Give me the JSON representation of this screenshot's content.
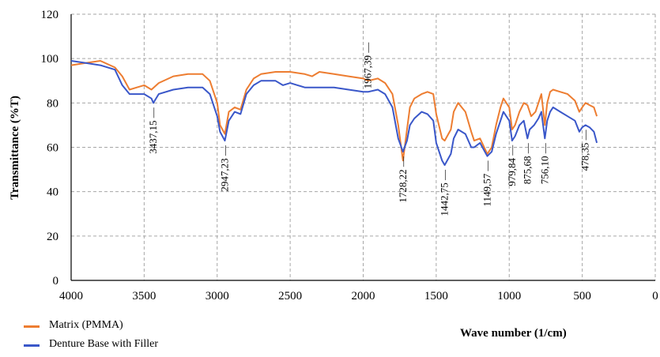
{
  "chart_data": {
    "type": "line",
    "title": "",
    "xlabel": "Wave number (1/cm)",
    "ylabel": "Transmittance (%T)",
    "xlim": [
      4000,
      0
    ],
    "ylim": [
      0,
      120
    ],
    "x_ticks": [
      "4000",
      "3500",
      "3000",
      "2500",
      "2000",
      "1500",
      "1000",
      "500",
      "0"
    ],
    "y_ticks": [
      "0",
      "20",
      "40",
      "60",
      "80",
      "100",
      "120"
    ],
    "grid": true,
    "legend_position": "bottom-left",
    "series": [
      {
        "name": "Matrix (PMMA)",
        "color": "#ED7D31",
        "points": [
          [
            4000,
            97
          ],
          [
            3900,
            98
          ],
          [
            3800,
            99
          ],
          [
            3700,
            96
          ],
          [
            3650,
            92
          ],
          [
            3600,
            86
          ],
          [
            3550,
            87
          ],
          [
            3500,
            88
          ],
          [
            3450,
            86
          ],
          [
            3400,
            89
          ],
          [
            3300,
            92
          ],
          [
            3200,
            93
          ],
          [
            3100,
            93
          ],
          [
            3050,
            90
          ],
          [
            3000,
            80
          ],
          [
            2980,
            70
          ],
          [
            2947,
            66
          ],
          [
            2920,
            76
          ],
          [
            2880,
            78
          ],
          [
            2840,
            77
          ],
          [
            2800,
            86
          ],
          [
            2750,
            91
          ],
          [
            2700,
            93
          ],
          [
            2600,
            94
          ],
          [
            2500,
            94
          ],
          [
            2400,
            93
          ],
          [
            2350,
            92
          ],
          [
            2300,
            94
          ],
          [
            2200,
            93
          ],
          [
            2100,
            92
          ],
          [
            2000,
            91
          ],
          [
            1967,
            90
          ],
          [
            1900,
            91
          ],
          [
            1850,
            89
          ],
          [
            1800,
            84
          ],
          [
            1760,
            70
          ],
          [
            1728,
            54
          ],
          [
            1700,
            68
          ],
          [
            1680,
            78
          ],
          [
            1650,
            82
          ],
          [
            1600,
            84
          ],
          [
            1560,
            85
          ],
          [
            1520,
            84
          ],
          [
            1500,
            75
          ],
          [
            1460,
            64
          ],
          [
            1442,
            63
          ],
          [
            1400,
            68
          ],
          [
            1380,
            76
          ],
          [
            1350,
            80
          ],
          [
            1300,
            76
          ],
          [
            1260,
            67
          ],
          [
            1240,
            63
          ],
          [
            1200,
            64
          ],
          [
            1150,
            57
          ],
          [
            1120,
            60
          ],
          [
            1090,
            70
          ],
          [
            1060,
            78
          ],
          [
            1040,
            82
          ],
          [
            1000,
            78
          ],
          [
            980,
            68
          ],
          [
            960,
            70
          ],
          [
            930,
            76
          ],
          [
            900,
            80
          ],
          [
            875,
            79
          ],
          [
            850,
            74
          ],
          [
            820,
            76
          ],
          [
            800,
            80
          ],
          [
            780,
            84
          ],
          [
            756,
            70
          ],
          [
            740,
            80
          ],
          [
            720,
            85
          ],
          [
            700,
            86
          ],
          [
            650,
            85
          ],
          [
            600,
            84
          ],
          [
            550,
            81
          ],
          [
            520,
            76
          ],
          [
            500,
            78
          ],
          [
            478,
            80
          ],
          [
            450,
            79
          ],
          [
            420,
            78
          ],
          [
            400,
            74
          ]
        ]
      },
      {
        "name": "Denture Base with Filler",
        "color": "#3A57C9",
        "points": [
          [
            4000,
            99
          ],
          [
            3900,
            98
          ],
          [
            3800,
            97
          ],
          [
            3700,
            95
          ],
          [
            3650,
            88
          ],
          [
            3600,
            84
          ],
          [
            3550,
            84
          ],
          [
            3500,
            84
          ],
          [
            3450,
            82
          ],
          [
            3437,
            80
          ],
          [
            3400,
            84
          ],
          [
            3300,
            86
          ],
          [
            3200,
            87
          ],
          [
            3100,
            87
          ],
          [
            3050,
            84
          ],
          [
            3000,
            74
          ],
          [
            2980,
            67
          ],
          [
            2947,
            63
          ],
          [
            2920,
            72
          ],
          [
            2880,
            76
          ],
          [
            2840,
            75
          ],
          [
            2800,
            84
          ],
          [
            2750,
            88
          ],
          [
            2700,
            90
          ],
          [
            2600,
            90
          ],
          [
            2550,
            88
          ],
          [
            2500,
            89
          ],
          [
            2450,
            88
          ],
          [
            2400,
            87
          ],
          [
            2300,
            87
          ],
          [
            2200,
            87
          ],
          [
            2100,
            86
          ],
          [
            2000,
            85
          ],
          [
            1967,
            85
          ],
          [
            1900,
            86
          ],
          [
            1850,
            84
          ],
          [
            1800,
            78
          ],
          [
            1760,
            64
          ],
          [
            1728,
            58
          ],
          [
            1700,
            63
          ],
          [
            1680,
            70
          ],
          [
            1650,
            73
          ],
          [
            1600,
            76
          ],
          [
            1560,
            75
          ],
          [
            1520,
            72
          ],
          [
            1500,
            62
          ],
          [
            1460,
            54
          ],
          [
            1442,
            52
          ],
          [
            1400,
            57
          ],
          [
            1380,
            64
          ],
          [
            1350,
            68
          ],
          [
            1300,
            66
          ],
          [
            1260,
            60
          ],
          [
            1240,
            60
          ],
          [
            1200,
            62
          ],
          [
            1150,
            56
          ],
          [
            1120,
            58
          ],
          [
            1090,
            66
          ],
          [
            1060,
            72
          ],
          [
            1040,
            76
          ],
          [
            1000,
            72
          ],
          [
            980,
            63
          ],
          [
            960,
            65
          ],
          [
            930,
            70
          ],
          [
            900,
            72
          ],
          [
            875,
            64
          ],
          [
            860,
            68
          ],
          [
            830,
            70
          ],
          [
            800,
            73
          ],
          [
            780,
            76
          ],
          [
            756,
            64
          ],
          [
            740,
            72
          ],
          [
            720,
            76
          ],
          [
            700,
            78
          ],
          [
            650,
            76
          ],
          [
            600,
            74
          ],
          [
            550,
            72
          ],
          [
            520,
            67
          ],
          [
            500,
            69
          ],
          [
            478,
            70
          ],
          [
            450,
            69
          ],
          [
            420,
            67
          ],
          [
            400,
            62
          ]
        ]
      }
    ],
    "annotations": [
      {
        "text": "3437,15",
        "x": 3437,
        "pos": "below"
      },
      {
        "text": "2947,23",
        "x": 2947,
        "pos": "below"
      },
      {
        "text": "1967,39",
        "x": 1967,
        "pos": "above"
      },
      {
        "text": "1728,22",
        "x": 1728,
        "pos": "below"
      },
      {
        "text": "1442,75",
        "x": 1442,
        "pos": "below"
      },
      {
        "text": "1149,57",
        "x": 1149,
        "pos": "below"
      },
      {
        "text": "979,84",
        "x": 979,
        "pos": "below"
      },
      {
        "text": "875,68",
        "x": 875,
        "pos": "below"
      },
      {
        "text": "756,10",
        "x": 756,
        "pos": "below"
      },
      {
        "text": "478,35",
        "x": 478,
        "pos": "below"
      }
    ]
  }
}
